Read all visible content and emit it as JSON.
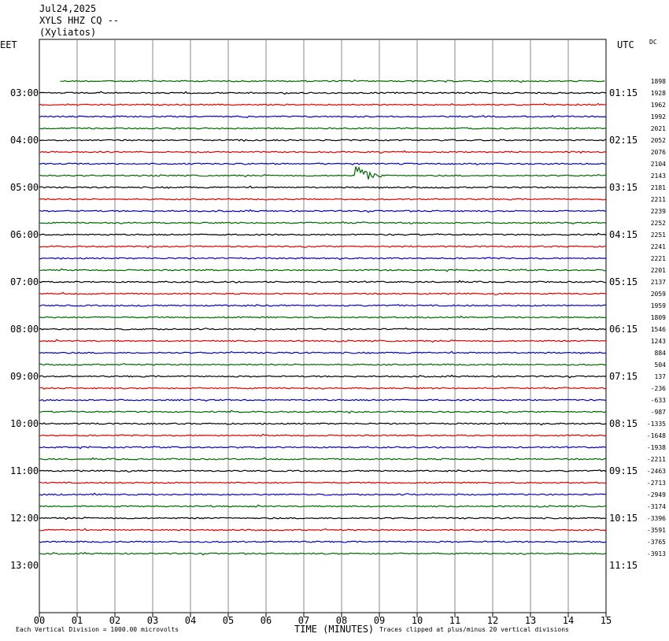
{
  "header": {
    "date": "Jul24,2025",
    "station": "XYLS HHZ CQ --",
    "location": "(Xyliatos)"
  },
  "left_zone_label": "EET",
  "right_zone_label": "UTC",
  "dc_label": "DC",
  "footer": {
    "vertical_division": "Each Vertical Division = 1000.00 microvolts",
    "xlabel": "TIME (MINUTES)",
    "clip_note": "Traces clipped at plus/minus 20 vertical divisions"
  },
  "colors": {
    "cycle": [
      "#000000",
      "#dd0000",
      "#0000cc",
      "#006600"
    ],
    "grid": "#888888"
  },
  "chart_data": {
    "type": "line",
    "x_ticks": [
      "00",
      "01",
      "02",
      "03",
      "04",
      "05",
      "06",
      "07",
      "08",
      "09",
      "10",
      "11",
      "12",
      "13",
      "14",
      "15"
    ],
    "xlim": [
      0,
      15
    ],
    "left_hour_labels": [
      "03:00",
      "04:00",
      "05:00",
      "06:00",
      "07:00",
      "08:00",
      "09:00",
      "10:00",
      "11:00",
      "12:00",
      "13:00"
    ],
    "right_hour_labels": [
      "01:15",
      "02:15",
      "03:15",
      "04:15",
      "05:15",
      "06:15",
      "07:15",
      "08:15",
      "09:15",
      "10:15",
      "11:15"
    ],
    "row_labels_start_row": 4,
    "rows_per_hour": 4,
    "total_rows": 47,
    "first_trace_row": 3,
    "first_trace_start_minute": 0.55,
    "dc_values": [
      "1898",
      "1928",
      "1962",
      "1992",
      "2021",
      "2052",
      "2076",
      "2104",
      "2143",
      "2181",
      "2211",
      "2239",
      "2252",
      "2251",
      "2241",
      "2221",
      "2201",
      "2137",
      "2059",
      "1959",
      "1809",
      "1546",
      "1243",
      "884",
      "504",
      "137",
      "-236",
      "-633",
      "-987",
      "-1335",
      "-1648",
      "-1938",
      "-2211",
      "-2463",
      "-2713",
      "-2949",
      "-3174",
      "-3396",
      "-3591",
      "-3765",
      "-3913"
    ],
    "events": [
      {
        "trace_index": 8,
        "minute": 8.45,
        "amplitude_divisions": 0.9,
        "duration_minutes": 0.7
      }
    ]
  }
}
